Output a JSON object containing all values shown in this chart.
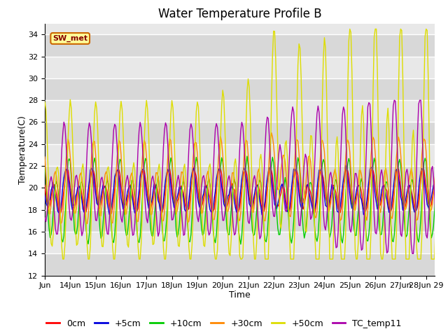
{
  "title": "Water Temperature Profile B",
  "xlabel": "Time",
  "ylabel": "Temperature(C)",
  "ylim": [
    12,
    35
  ],
  "yticks": [
    12,
    14,
    16,
    18,
    20,
    22,
    24,
    26,
    28,
    30,
    32,
    34
  ],
  "xtick_positions": [
    0,
    24,
    48,
    72,
    96,
    120,
    144,
    168,
    192,
    216,
    240,
    264,
    288,
    312,
    336,
    360
  ],
  "xtick_labels": [
    "Jun",
    "14Jun",
    "15Jun",
    "16Jun",
    "17Jun",
    "18Jun",
    "19Jun",
    "20Jun",
    "21Jun",
    "22Jun",
    "23Jun",
    "24Jun",
    "25Jun",
    "26Jun",
    "27Jun",
    "28Jun 29"
  ],
  "series_colors": {
    "0cm": "#ff0000",
    "+5cm": "#0000dd",
    "+10cm": "#00cc00",
    "+30cm": "#ff8800",
    "+50cm": "#dddd00",
    "TC_temp11": "#aa00aa"
  },
  "sw_met_label": "SW_met",
  "sw_met_fg": "#880000",
  "sw_met_bg": "#ffff99",
  "sw_met_border": "#cc6600",
  "fig_bg": "#ffffff",
  "plot_bg": "#e8e8e8",
  "grid_color": "#ffffff",
  "title_fontsize": 12,
  "label_fontsize": 9,
  "tick_fontsize": 8,
  "legend_fontsize": 9,
  "linewidth": 1.0,
  "figsize": [
    6.4,
    4.8
  ],
  "dpi": 100
}
